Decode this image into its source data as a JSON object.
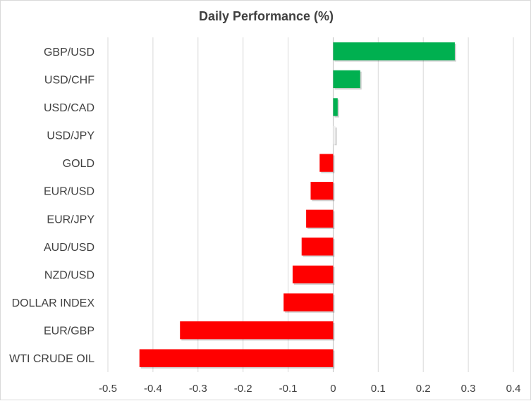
{
  "chart_data": {
    "type": "bar",
    "orientation": "horizontal",
    "title": "Daily Performance  (%)",
    "xlabel": "",
    "ylabel": "",
    "categories": [
      "GBP/USD",
      "USD/CHF",
      "USD/CAD",
      "USD/JPY",
      "GOLD",
      "EUR/USD",
      "EUR/JPY",
      "AUD/USD",
      "NZD/USD",
      "DOLLAR INDEX",
      "EUR/GBP",
      "WTI CRUDE OIL"
    ],
    "values": [
      0.27,
      0.06,
      0.01,
      0.005,
      -0.03,
      -0.05,
      -0.06,
      -0.07,
      -0.09,
      -0.11,
      -0.34,
      -0.43
    ],
    "xlim": [
      -0.5,
      0.4
    ],
    "xticks": [
      "-0.5",
      "-0.4",
      "-0.3",
      "-0.2",
      "-0.1",
      "0",
      "0.1",
      "0.2",
      "0.3",
      "0.4"
    ],
    "grid": "vertical",
    "legend": "none",
    "colors": {
      "positive": "#00b050",
      "negative": "#ff0000",
      "near_zero": "#f2f2f2",
      "grid": "#d9d9d9",
      "axis": "#bfbfbf",
      "text": "#404040"
    }
  }
}
